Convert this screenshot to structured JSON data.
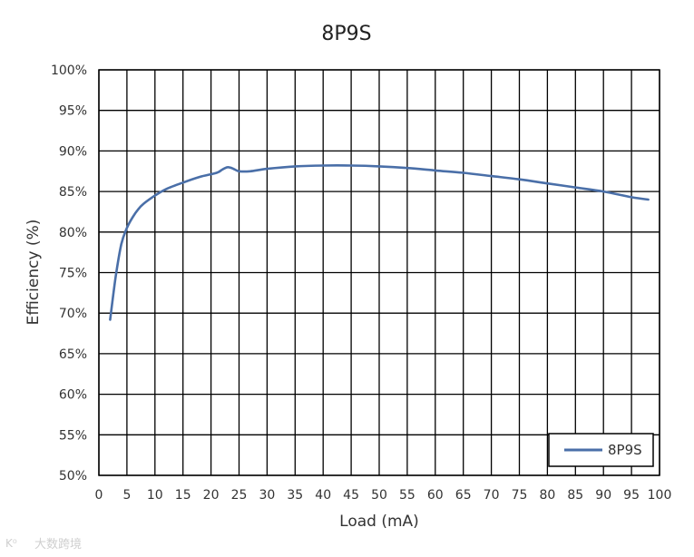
{
  "chart_data": {
    "type": "line",
    "title": "8P9S",
    "xlabel": "Load (mA)",
    "ylabel": "Efficiency (%)",
    "xlim": [
      0,
      100
    ],
    "ylim": [
      50,
      100
    ],
    "x_ticks": [
      "0",
      "5",
      "10",
      "15",
      "20",
      "25",
      "30",
      "35",
      "40",
      "45",
      "50",
      "55",
      "60",
      "65",
      "70",
      "75",
      "80",
      "85",
      "90",
      "95",
      "100"
    ],
    "y_ticks": [
      "50%",
      "55%",
      "60%",
      "65%",
      "70%",
      "75%",
      "80%",
      "85%",
      "90%",
      "95%",
      "100%"
    ],
    "grid": true,
    "legend_position": "bottom-right",
    "series": [
      {
        "name": "8P9S",
        "color": "#4a6fa8",
        "x": [
          2,
          3,
          4,
          5,
          6,
          7,
          8,
          10,
          12,
          15,
          18,
          21,
          22,
          23,
          24,
          25,
          27,
          30,
          35,
          40,
          45,
          50,
          55,
          60,
          65,
          70,
          75,
          80,
          85,
          90,
          95,
          98
        ],
        "y": [
          69.2,
          74.5,
          78.5,
          80.5,
          81.8,
          82.8,
          83.5,
          84.5,
          85.3,
          86.1,
          86.8,
          87.3,
          87.7,
          88.0,
          87.8,
          87.5,
          87.5,
          87.8,
          88.1,
          88.2,
          88.2,
          88.1,
          87.9,
          87.6,
          87.3,
          86.9,
          86.5,
          86.0,
          85.5,
          85.0,
          84.3,
          84.0
        ]
      }
    ]
  },
  "watermark": {
    "text": "大数跨境"
  }
}
